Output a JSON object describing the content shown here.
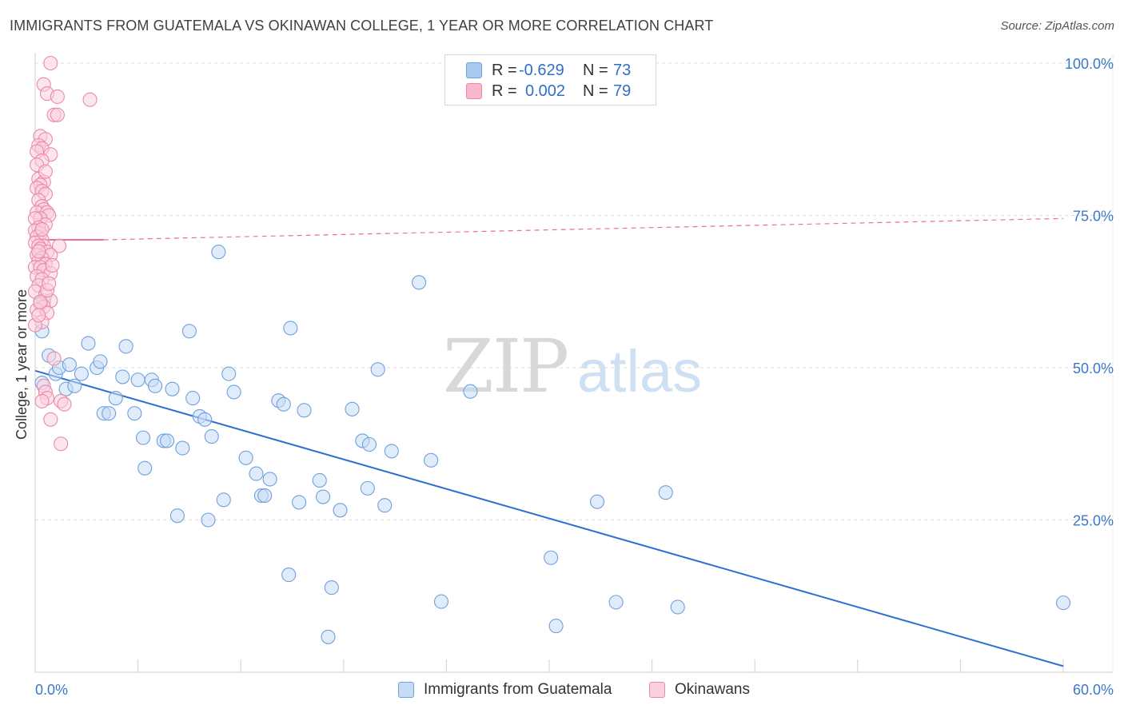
{
  "title": "IMMIGRANTS FROM GUATEMALA VS OKINAWAN COLLEGE, 1 YEAR OR MORE CORRELATION CHART",
  "source": "Source: ZipAtlas.com",
  "watermark": {
    "zip": "ZIP",
    "atlas": "atlas"
  },
  "legend": {
    "rows": [
      {
        "r_label": "R =",
        "r_value": "-0.629",
        "n_label": "N =",
        "n_value": "73",
        "color": "#a8c8f0",
        "border": "#6fa0dc"
      },
      {
        "r_label": "R =",
        "r_value": "0.002",
        "n_label": "N =",
        "n_value": "79",
        "color": "#f7b8cc",
        "border": "#e88aa8"
      }
    ]
  },
  "bottom_legend": [
    {
      "label": "Immigrants from Guatemala",
      "color": "#c6dcf5",
      "border": "#6fa0dc"
    },
    {
      "label": "Okinawans",
      "color": "#fbd0de",
      "border": "#e88aa8"
    }
  ],
  "chart_data": {
    "type": "scatter",
    "title": "IMMIGRANTS FROM GUATEMALA VS OKINAWAN COLLEGE, 1 YEAR OR MORE CORRELATION CHART",
    "xlabel": "",
    "ylabel": "College, 1 year or more",
    "xlim": [
      0,
      60
    ],
    "ylim": [
      0,
      100
    ],
    "x_tick_labels": [
      "0.0%",
      "60.0%"
    ],
    "y_tick_labels": [
      "100.0%",
      "75.0%",
      "50.0%",
      "25.0%"
    ],
    "y_ticks": [
      100,
      75,
      50,
      25
    ],
    "grid": true,
    "legend_position": "top-center",
    "series": [
      {
        "name": "Immigrants from Guatemala",
        "color": "#6fa0dc",
        "fill": "#c6dcf5",
        "trend": {
          "x": [
            0,
            60
          ],
          "y": [
            49.5,
            1.0
          ],
          "color": "#2f6fd0",
          "style": "solid"
        },
        "points": [
          [
            0.5,
            61
          ],
          [
            0.4,
            56
          ],
          [
            0.8,
            52
          ],
          [
            1.2,
            49
          ],
          [
            1.4,
            50
          ],
          [
            1.8,
            46.5
          ],
          [
            2.0,
            50.5
          ],
          [
            2.3,
            47
          ],
          [
            2.7,
            49
          ],
          [
            3.1,
            54
          ],
          [
            3.6,
            50
          ],
          [
            3.8,
            51
          ],
          [
            4.0,
            42.5
          ],
          [
            4.3,
            42.5
          ],
          [
            4.7,
            45
          ],
          [
            5.1,
            48.5
          ],
          [
            5.3,
            53.5
          ],
          [
            5.8,
            42.5
          ],
          [
            6.0,
            48
          ],
          [
            6.3,
            38.5
          ],
          [
            6.4,
            33.5
          ],
          [
            6.8,
            48
          ],
          [
            7.0,
            47
          ],
          [
            7.5,
            38
          ],
          [
            7.7,
            38
          ],
          [
            8.0,
            46.5
          ],
          [
            8.3,
            25.7
          ],
          [
            8.6,
            36.8
          ],
          [
            9.0,
            56
          ],
          [
            9.2,
            45
          ],
          [
            9.6,
            42
          ],
          [
            9.9,
            41.5
          ],
          [
            10.1,
            25
          ],
          [
            10.3,
            38.7
          ],
          [
            10.7,
            69
          ],
          [
            11.0,
            28.3
          ],
          [
            11.3,
            49
          ],
          [
            11.6,
            46
          ],
          [
            12.3,
            35.2
          ],
          [
            12.9,
            32.6
          ],
          [
            13.2,
            29
          ],
          [
            13.4,
            29
          ],
          [
            13.7,
            31.7
          ],
          [
            14.2,
            44.6
          ],
          [
            14.5,
            44
          ],
          [
            14.8,
            16
          ],
          [
            14.9,
            56.5
          ],
          [
            15.4,
            27.9
          ],
          [
            15.7,
            43
          ],
          [
            16.6,
            31.5
          ],
          [
            16.8,
            28.8
          ],
          [
            17.1,
            5.8
          ],
          [
            17.3,
            13.9
          ],
          [
            17.8,
            26.6
          ],
          [
            18.5,
            43.2
          ],
          [
            19.1,
            38
          ],
          [
            19.4,
            30.2
          ],
          [
            19.5,
            37.4
          ],
          [
            20.0,
            49.7
          ],
          [
            20.4,
            27.4
          ],
          [
            20.8,
            36.3
          ],
          [
            22.4,
            64
          ],
          [
            23.1,
            34.8
          ],
          [
            23.7,
            11.6
          ],
          [
            25.4,
            46.1
          ],
          [
            30.1,
            18.8
          ],
          [
            30.4,
            7.6
          ],
          [
            32.8,
            28
          ],
          [
            33.9,
            11.5
          ],
          [
            36.8,
            29.5
          ],
          [
            37.5,
            10.7
          ],
          [
            60.0,
            11.4
          ],
          [
            0.4,
            47.5
          ]
        ]
      },
      {
        "name": "Okinawans",
        "color": "#e88aa8",
        "fill": "#fbd0de",
        "trend": {
          "x": [
            0,
            4.0
          ],
          "y": [
            71,
            71
          ],
          "color": "#e8709a",
          "style": "solid",
          "extension": {
            "x": [
              4.0,
              60
            ],
            "y": [
              71,
              74.5
            ],
            "style": "dashed"
          }
        },
        "points": [
          [
            0.9,
            100
          ],
          [
            0.5,
            96.5
          ],
          [
            0.7,
            95
          ],
          [
            1.3,
            94.5
          ],
          [
            3.2,
            94
          ],
          [
            1.1,
            91.5
          ],
          [
            1.3,
            91.5
          ],
          [
            0.3,
            88
          ],
          [
            0.6,
            87.5
          ],
          [
            0.2,
            86.5
          ],
          [
            0.4,
            86
          ],
          [
            0.1,
            85.5
          ],
          [
            0.9,
            85
          ],
          [
            0.4,
            84
          ],
          [
            0.2,
            81
          ],
          [
            0.5,
            80.5
          ],
          [
            0.3,
            80
          ],
          [
            0.1,
            79.5
          ],
          [
            0.4,
            79
          ],
          [
            0.6,
            78.5
          ],
          [
            0.2,
            77.5
          ],
          [
            0.4,
            76.5
          ],
          [
            0.5,
            76
          ],
          [
            0.1,
            75.5
          ],
          [
            0.7,
            75.5
          ],
          [
            0.8,
            75
          ],
          [
            0.3,
            74.5
          ],
          [
            0.0,
            74.5
          ],
          [
            0.6,
            73.5
          ],
          [
            0.2,
            73
          ],
          [
            0.0,
            72.5
          ],
          [
            0.3,
            72
          ],
          [
            0.1,
            71.5
          ],
          [
            0.4,
            71
          ],
          [
            0.0,
            70.5
          ],
          [
            0.5,
            70
          ],
          [
            0.2,
            70
          ],
          [
            1.4,
            70
          ],
          [
            0.3,
            69.5
          ],
          [
            0.7,
            69
          ],
          [
            0.1,
            68.5
          ],
          [
            0.9,
            68.5
          ],
          [
            0.4,
            68
          ],
          [
            0.2,
            67.5
          ],
          [
            0.6,
            67
          ],
          [
            0.0,
            66.5
          ],
          [
            0.3,
            66.5
          ],
          [
            0.5,
            66
          ],
          [
            0.9,
            65.5
          ],
          [
            0.1,
            65
          ],
          [
            0.4,
            64.5
          ],
          [
            0.2,
            63.5
          ],
          [
            0.0,
            62.5
          ],
          [
            0.6,
            62
          ],
          [
            0.9,
            61
          ],
          [
            0.3,
            60.5
          ],
          [
            0.5,
            60
          ],
          [
            0.1,
            59.5
          ],
          [
            0.7,
            59
          ],
          [
            0.4,
            57.5
          ],
          [
            0.0,
            57
          ],
          [
            1.1,
            51.5
          ],
          [
            0.5,
            47
          ],
          [
            0.6,
            46
          ],
          [
            0.7,
            45
          ],
          [
            1.5,
            44.5
          ],
          [
            1.7,
            44
          ],
          [
            0.4,
            44.5
          ],
          [
            0.9,
            41.5
          ],
          [
            1.5,
            37.5
          ],
          [
            0.3,
            60.8
          ],
          [
            0.7,
            62.7
          ],
          [
            0.2,
            58.6
          ],
          [
            1.0,
            66.8
          ],
          [
            0.8,
            63.8
          ],
          [
            0.1,
            83.3
          ],
          [
            0.6,
            82.2
          ],
          [
            0.2,
            69.1
          ],
          [
            0.4,
            72.7
          ]
        ]
      }
    ]
  }
}
